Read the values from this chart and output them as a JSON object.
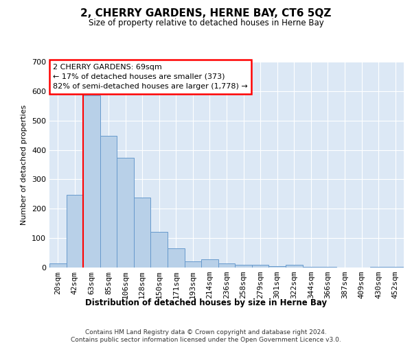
{
  "title": "2, CHERRY GARDENS, HERNE BAY, CT6 5QZ",
  "subtitle": "Size of property relative to detached houses in Herne Bay",
  "xlabel": "Distribution of detached houses by size in Herne Bay",
  "ylabel": "Number of detached properties",
  "bar_color": "#b8d0e8",
  "bar_edge_color": "#6699cc",
  "background_color": "#dce8f5",
  "grid_color": "#ffffff",
  "categories": [
    "20sqm",
    "42sqm",
    "63sqm",
    "85sqm",
    "106sqm",
    "128sqm",
    "150sqm",
    "171sqm",
    "193sqm",
    "214sqm",
    "236sqm",
    "258sqm",
    "279sqm",
    "301sqm",
    "322sqm",
    "344sqm",
    "366sqm",
    "387sqm",
    "409sqm",
    "430sqm",
    "452sqm"
  ],
  "values": [
    15,
    248,
    585,
    447,
    373,
    237,
    122,
    65,
    22,
    28,
    13,
    10,
    9,
    5,
    10,
    3,
    2,
    0,
    0,
    3,
    2
  ],
  "ylim": [
    0,
    700
  ],
  "yticks": [
    0,
    100,
    200,
    300,
    400,
    500,
    600,
    700
  ],
  "annotation_text": "2 CHERRY GARDENS: 69sqm\n← 17% of detached houses are smaller (373)\n82% of semi-detached houses are larger (1,778) →",
  "footer1": "Contains HM Land Registry data © Crown copyright and database right 2024.",
  "footer2": "Contains public sector information licensed under the Open Government Licence v3.0.",
  "red_line_bar_index": 2
}
